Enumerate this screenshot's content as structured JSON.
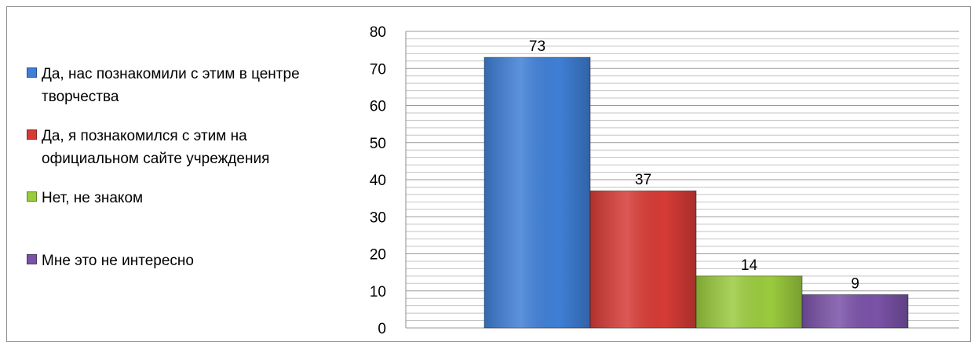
{
  "chart_data": {
    "type": "bar",
    "title": "",
    "xlabel": "",
    "ylabel": "",
    "ylim": [
      0,
      80
    ],
    "yticks": [
      0,
      10,
      20,
      30,
      40,
      50,
      60,
      70,
      80
    ],
    "grid": true,
    "legend_position": "left",
    "series": [
      {
        "name": "Да, нас познакомили с этим в центре творчества",
        "value": 73,
        "color": "#3f7fd6"
      },
      {
        "name": "Да, я познакомился с этим на официальном сайте учреждения",
        "value": 37,
        "color": "#d63b36"
      },
      {
        "name": "Нет, не знаком",
        "value": 14,
        "color": "#9acb3e"
      },
      {
        "name": "Мне это не интересно",
        "value": 9,
        "color": "#7a52a8"
      }
    ],
    "data_labels": [
      "73",
      "37",
      "14",
      "9"
    ]
  },
  "legend": {
    "items": [
      {
        "label": "Да, нас познакомили с этим в центре творчества",
        "color": "#3f7fd6"
      },
      {
        "label": "Да, я познакомился с этим на официальном сайте учреждения",
        "color": "#d63b36"
      },
      {
        "label": "Нет, не знаком",
        "color": "#9acb3e"
      },
      {
        "label": "Мне это не интересно",
        "color": "#7a52a8"
      }
    ]
  }
}
